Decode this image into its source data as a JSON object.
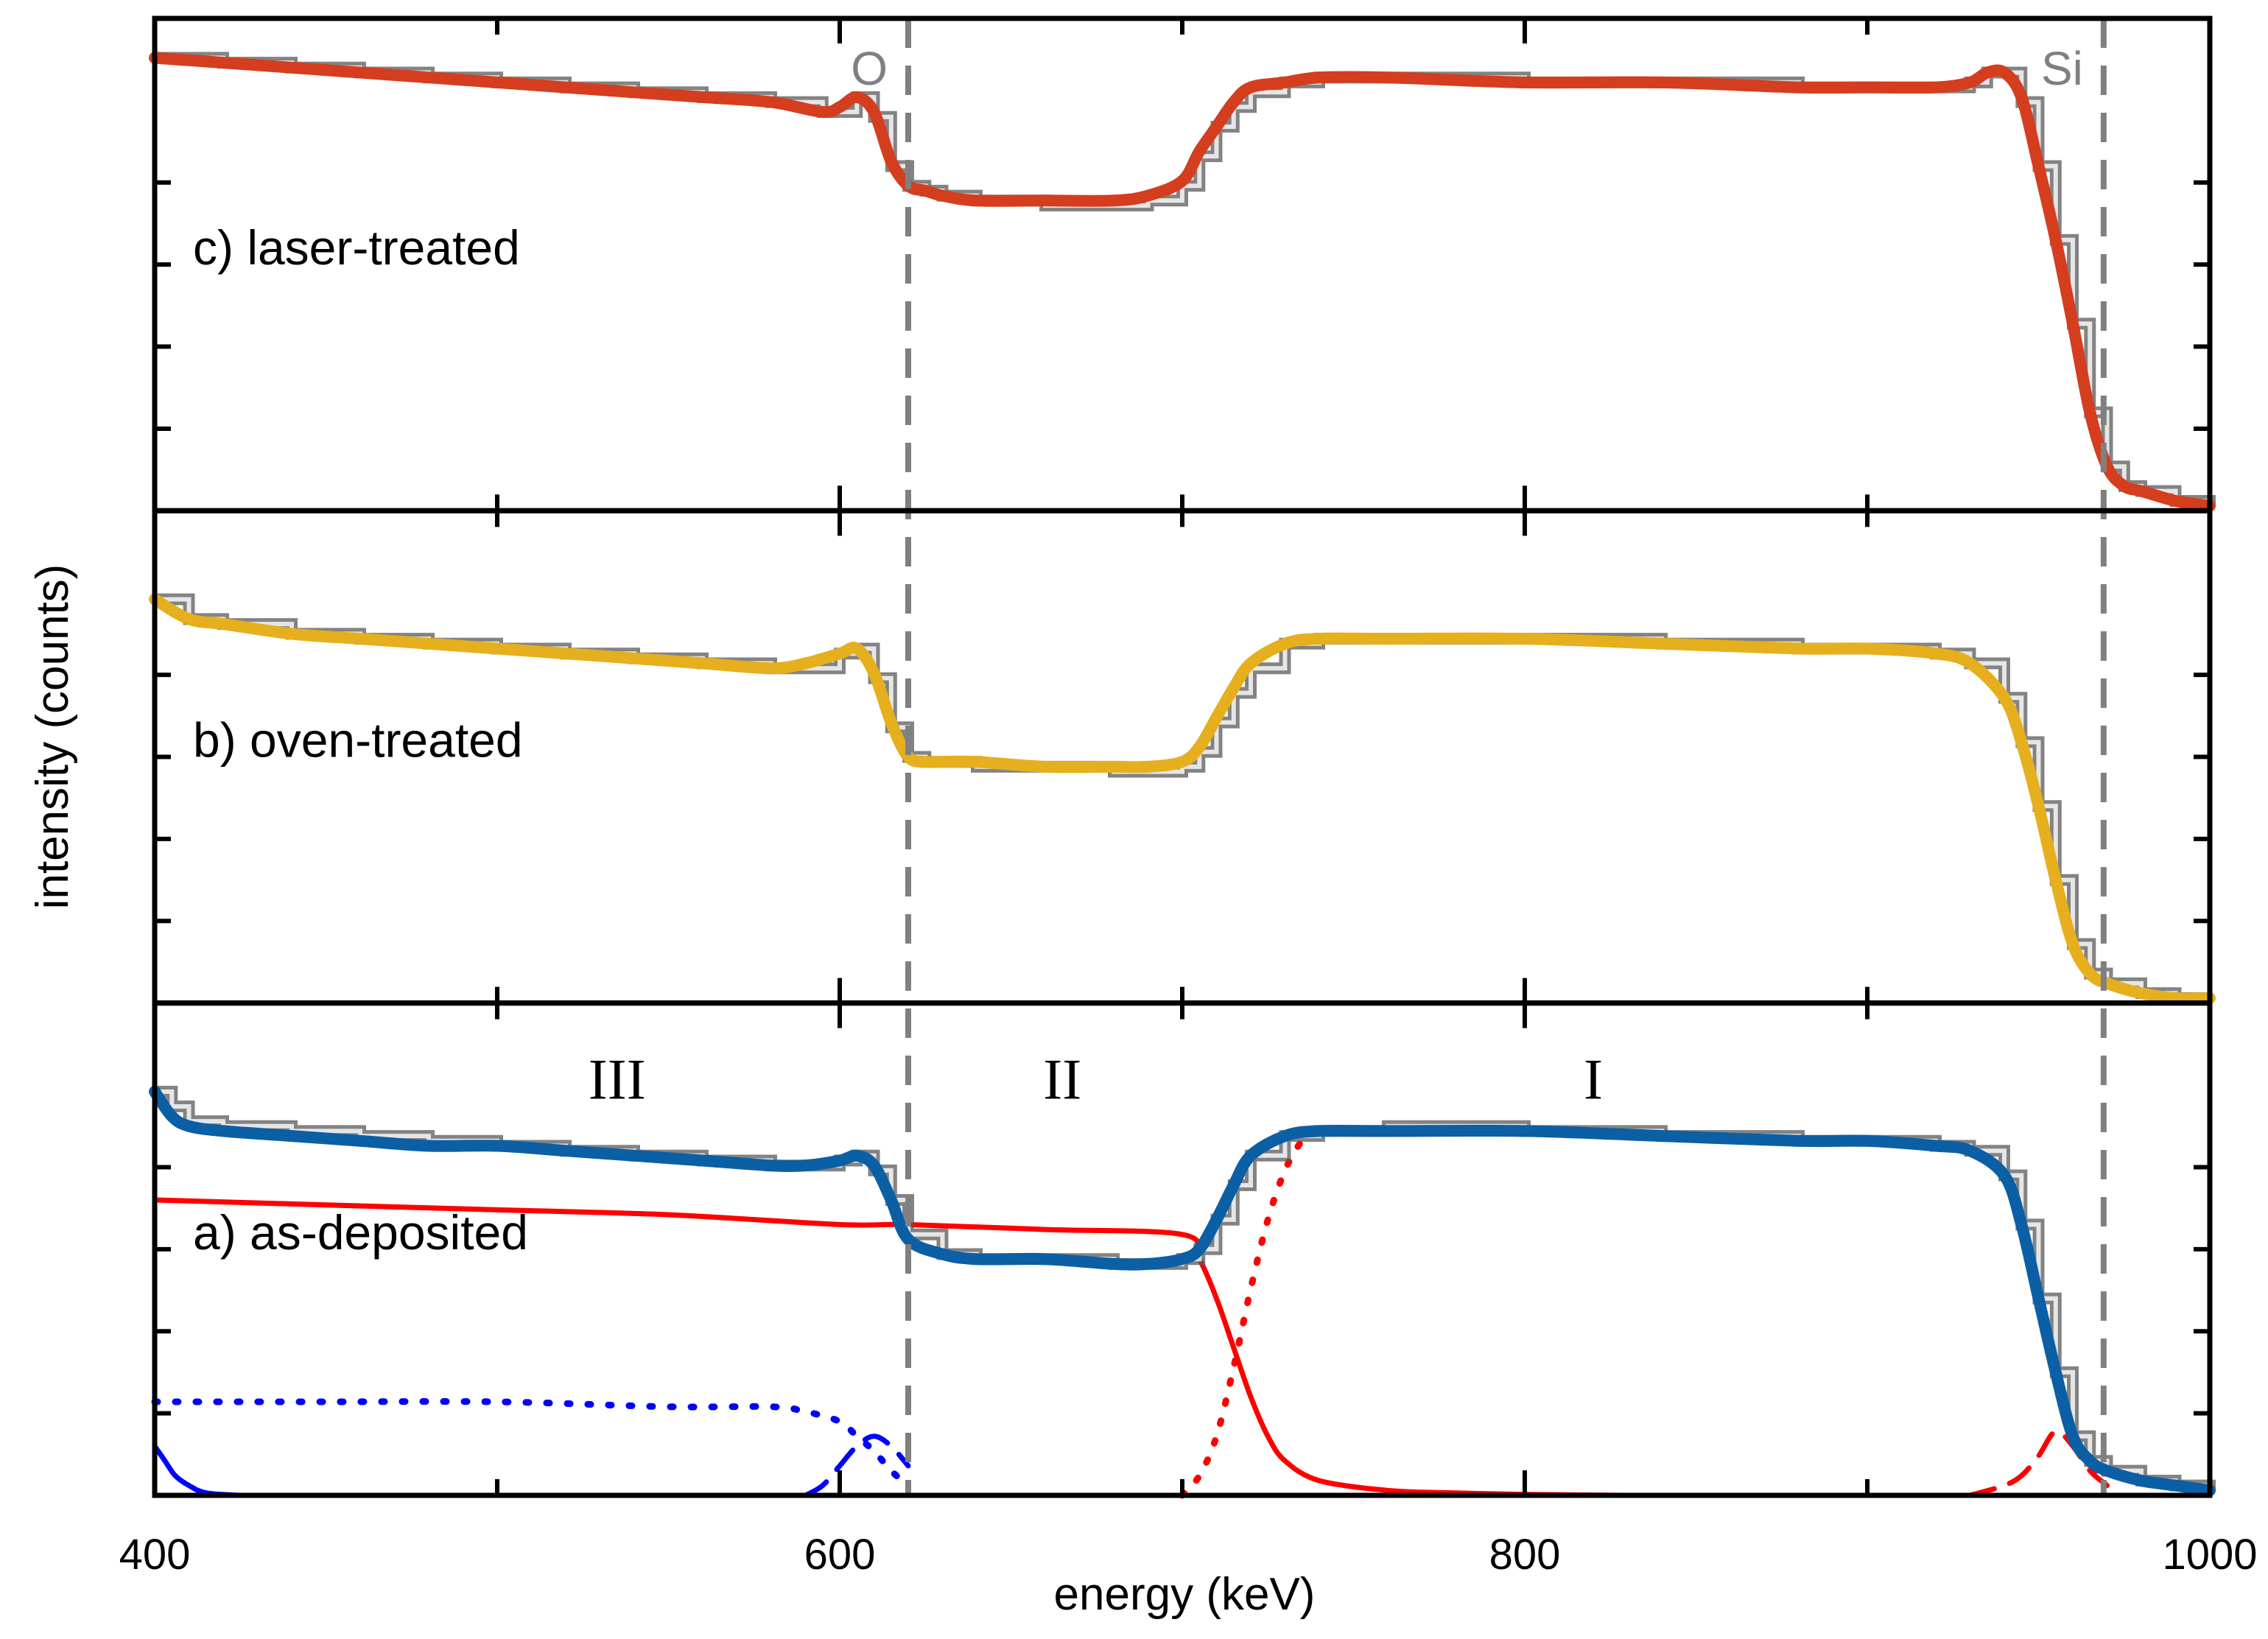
{
  "chart_data": {
    "type": "line",
    "title": "",
    "xlabel": "energy (keV)",
    "ylabel": "intensity (counts)",
    "xlim": [
      400,
      1000
    ],
    "x_ticks": [
      400,
      600,
      800,
      1000
    ],
    "x_tick_labels": [
      "400",
      "600",
      "800",
      "1000"
    ],
    "grid": false,
    "legend": "none",
    "reference_lines": [
      {
        "label": "O",
        "x": 620,
        "style": "dashed",
        "color": "#808080"
      },
      {
        "label": "Si",
        "x": 969,
        "style": "dashed",
        "color": "#808080"
      }
    ],
    "panels": [
      {
        "id": "c",
        "label": "c) laser-treated",
        "position": "top",
        "fit_color": "#d53d1f",
        "ylim": [
          0,
          1.0
        ],
        "measured": {
          "x": [
            400,
            420,
            440,
            460,
            480,
            500,
            520,
            540,
            560,
            580,
            595,
            600,
            605,
            610,
            615,
            620,
            625,
            630,
            640,
            660,
            680,
            690,
            700,
            705,
            710,
            715,
            720,
            730,
            740,
            760,
            800,
            840,
            880,
            900,
            920,
            930,
            935,
            940,
            945,
            950,
            955,
            960,
            965,
            970,
            975,
            980,
            990,
            1000
          ],
          "y": [
            0.92,
            0.91,
            0.9,
            0.89,
            0.88,
            0.87,
            0.86,
            0.85,
            0.84,
            0.83,
            0.81,
            0.81,
            0.84,
            0.8,
            0.7,
            0.66,
            0.65,
            0.64,
            0.63,
            0.62,
            0.62,
            0.63,
            0.66,
            0.72,
            0.78,
            0.82,
            0.85,
            0.87,
            0.88,
            0.88,
            0.87,
            0.87,
            0.86,
            0.86,
            0.86,
            0.87,
            0.89,
            0.89,
            0.83,
            0.7,
            0.55,
            0.38,
            0.2,
            0.09,
            0.05,
            0.04,
            0.02,
            0.01
          ]
        },
        "fit": {
          "x": [
            400,
            420,
            440,
            460,
            480,
            500,
            520,
            540,
            560,
            580,
            595,
            600,
            605,
            610,
            615,
            620,
            625,
            630,
            640,
            660,
            680,
            690,
            700,
            705,
            710,
            715,
            720,
            730,
            740,
            760,
            800,
            840,
            880,
            900,
            920,
            930,
            935,
            940,
            945,
            950,
            955,
            960,
            965,
            970,
            975,
            980,
            990,
            1000
          ],
          "y": [
            0.92,
            0.91,
            0.9,
            0.89,
            0.88,
            0.87,
            0.86,
            0.85,
            0.84,
            0.83,
            0.81,
            0.82,
            0.84,
            0.81,
            0.71,
            0.66,
            0.65,
            0.64,
            0.63,
            0.63,
            0.63,
            0.64,
            0.67,
            0.73,
            0.78,
            0.83,
            0.86,
            0.87,
            0.88,
            0.88,
            0.87,
            0.87,
            0.86,
            0.86,
            0.86,
            0.87,
            0.89,
            0.89,
            0.84,
            0.7,
            0.55,
            0.38,
            0.2,
            0.09,
            0.05,
            0.04,
            0.02,
            0.01
          ]
        }
      },
      {
        "id": "b",
        "label": "b) oven-treated",
        "position": "middle",
        "fit_color": "#e6af1e",
        "ylim": [
          0,
          1.0
        ],
        "measured": {
          "x": [
            400,
            410,
            420,
            440,
            460,
            480,
            500,
            520,
            540,
            560,
            580,
            590,
            600,
            605,
            610,
            615,
            620,
            625,
            630,
            640,
            660,
            680,
            690,
            700,
            705,
            710,
            715,
            720,
            730,
            740,
            760,
            800,
            840,
            880,
            900,
            920,
            930,
            940,
            945,
            950,
            955,
            960,
            965,
            970,
            980,
            990,
            1000
          ],
          "y": [
            0.82,
            0.78,
            0.77,
            0.75,
            0.74,
            0.73,
            0.72,
            0.71,
            0.7,
            0.69,
            0.68,
            0.68,
            0.71,
            0.72,
            0.66,
            0.56,
            0.5,
            0.49,
            0.49,
            0.48,
            0.48,
            0.47,
            0.47,
            0.48,
            0.51,
            0.57,
            0.63,
            0.68,
            0.73,
            0.74,
            0.74,
            0.74,
            0.73,
            0.72,
            0.72,
            0.71,
            0.69,
            0.62,
            0.53,
            0.4,
            0.25,
            0.12,
            0.06,
            0.04,
            0.02,
            0.01,
            0.01
          ]
        },
        "fit": {
          "x": [
            400,
            410,
            420,
            440,
            460,
            480,
            500,
            520,
            540,
            560,
            580,
            590,
            600,
            605,
            610,
            615,
            620,
            625,
            630,
            640,
            660,
            680,
            690,
            700,
            705,
            710,
            715,
            720,
            730,
            740,
            760,
            800,
            840,
            880,
            900,
            920,
            930,
            940,
            945,
            950,
            955,
            960,
            965,
            970,
            980,
            990,
            1000
          ],
          "y": [
            0.82,
            0.78,
            0.77,
            0.75,
            0.74,
            0.73,
            0.72,
            0.71,
            0.7,
            0.69,
            0.68,
            0.69,
            0.71,
            0.72,
            0.67,
            0.57,
            0.5,
            0.49,
            0.49,
            0.49,
            0.48,
            0.48,
            0.48,
            0.49,
            0.52,
            0.58,
            0.64,
            0.69,
            0.73,
            0.74,
            0.74,
            0.74,
            0.73,
            0.72,
            0.72,
            0.71,
            0.69,
            0.62,
            0.53,
            0.4,
            0.25,
            0.12,
            0.06,
            0.04,
            0.02,
            0.01,
            0.01
          ]
        }
      },
      {
        "id": "a",
        "label": "a) as-deposited",
        "position": "bottom",
        "fit_color": "#0b5fa5",
        "ylim": [
          0,
          1.0
        ],
        "region_labels": [
          {
            "text": "III",
            "x": 535
          },
          {
            "text": "II",
            "x": 665
          },
          {
            "text": "I",
            "x": 820
          }
        ],
        "measured": {
          "x": [
            400,
            405,
            410,
            420,
            440,
            460,
            480,
            500,
            520,
            540,
            560,
            580,
            590,
            600,
            605,
            610,
            615,
            620,
            630,
            640,
            660,
            680,
            690,
            700,
            705,
            710,
            715,
            720,
            730,
            740,
            760,
            800,
            840,
            880,
            900,
            920,
            930,
            940,
            945,
            950,
            955,
            960,
            965,
            970,
            980,
            990,
            1000
          ],
          "y": [
            0.82,
            0.79,
            0.76,
            0.75,
            0.74,
            0.73,
            0.72,
            0.71,
            0.7,
            0.69,
            0.68,
            0.67,
            0.67,
            0.68,
            0.69,
            0.66,
            0.6,
            0.53,
            0.49,
            0.48,
            0.48,
            0.47,
            0.47,
            0.48,
            0.5,
            0.56,
            0.63,
            0.69,
            0.73,
            0.74,
            0.75,
            0.74,
            0.73,
            0.72,
            0.72,
            0.71,
            0.7,
            0.65,
            0.55,
            0.4,
            0.25,
            0.12,
            0.07,
            0.05,
            0.03,
            0.02,
            0.01
          ]
        },
        "fit": {
          "x": [
            400,
            405,
            410,
            420,
            440,
            460,
            480,
            500,
            520,
            540,
            560,
            580,
            590,
            600,
            605,
            610,
            615,
            620,
            630,
            640,
            660,
            680,
            690,
            700,
            705,
            710,
            715,
            720,
            730,
            740,
            760,
            800,
            840,
            880,
            900,
            920,
            930,
            940,
            945,
            950,
            955,
            960,
            965,
            970,
            980,
            990,
            1000
          ],
          "y": [
            0.82,
            0.77,
            0.75,
            0.74,
            0.73,
            0.72,
            0.71,
            0.71,
            0.7,
            0.69,
            0.68,
            0.67,
            0.67,
            0.68,
            0.69,
            0.67,
            0.6,
            0.52,
            0.49,
            0.48,
            0.48,
            0.47,
            0.47,
            0.48,
            0.5,
            0.56,
            0.63,
            0.69,
            0.73,
            0.74,
            0.74,
            0.74,
            0.73,
            0.72,
            0.72,
            0.71,
            0.7,
            0.65,
            0.55,
            0.4,
            0.25,
            0.12,
            0.07,
            0.05,
            0.03,
            0.02,
            0.01
          ]
        },
        "components": [
          {
            "name": "solid-red",
            "color": "#ff0000",
            "style": "solid",
            "x": [
              400,
              450,
              500,
              550,
              600,
              620,
              660,
              700,
              705,
              710,
              715,
              720,
              725,
              730,
              740,
              760,
              780,
              800,
              830
            ],
            "y": [
              0.6,
              0.59,
              0.58,
              0.57,
              0.55,
              0.55,
              0.54,
              0.53,
              0.48,
              0.4,
              0.3,
              0.2,
              0.12,
              0.07,
              0.03,
              0.01,
              0.005,
              0.002,
              0
            ]
          },
          {
            "name": "dotted-red",
            "color": "#ff0000",
            "style": "dotted",
            "x": [
              700,
              705,
              710,
              715,
              720,
              725,
              730,
              735,
              740,
              760,
              800,
              840,
              880,
              900,
              920,
              930,
              940,
              945,
              950,
              955,
              960,
              965,
              970
            ],
            "y": [
              0.0,
              0.04,
              0.12,
              0.26,
              0.42,
              0.56,
              0.66,
              0.72,
              0.74,
              0.74,
              0.74,
              0.73,
              0.72,
              0.72,
              0.71,
              0.7,
              0.65,
              0.55,
              0.4,
              0.25,
              0.12,
              0.06,
              0.03
            ]
          },
          {
            "name": "dashed-red",
            "color": "#ff0000",
            "style": "dashed",
            "x": [
              930,
              940,
              945,
              950,
              955,
              960,
              965,
              970
            ],
            "y": [
              0.0,
              0.02,
              0.04,
              0.08,
              0.13,
              0.1,
              0.05,
              0.02
            ]
          },
          {
            "name": "dotted-blue",
            "color": "#0000ff",
            "style": "dotted",
            "x": [
              400,
              410,
              450,
              500,
              550,
              580,
              590,
              600,
              605,
              610,
              615,
              620
            ],
            "y": [
              0.19,
              0.19,
              0.19,
              0.19,
              0.18,
              0.18,
              0.17,
              0.15,
              0.12,
              0.09,
              0.05,
              0.02
            ]
          },
          {
            "name": "dashed-blue",
            "color": "#0000ff",
            "style": "dashed",
            "x": [
              590,
              595,
              600,
              605,
              610,
              615,
              620
            ],
            "y": [
              0.0,
              0.02,
              0.06,
              0.1,
              0.12,
              0.1,
              0.06
            ]
          },
          {
            "name": "solid-blue",
            "color": "#0000ff",
            "style": "solid",
            "x": [
              400,
              403,
              406,
              410,
              415,
              425
            ],
            "y": [
              0.1,
              0.07,
              0.04,
              0.02,
              0.005,
              0
            ]
          }
        ]
      }
    ]
  }
}
